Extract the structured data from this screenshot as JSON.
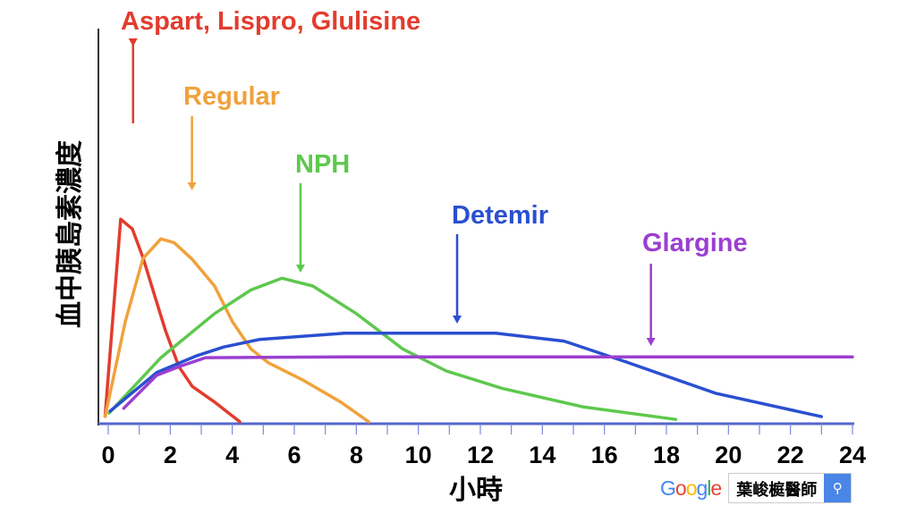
{
  "chart_data": {
    "type": "line",
    "title": "",
    "xlabel": "小時",
    "ylabel": "血中胰島素濃度",
    "xlim": [
      0,
      24
    ],
    "ylim": [
      0,
      100
    ],
    "x_ticks": [
      0,
      2,
      4,
      6,
      8,
      10,
      12,
      14,
      16,
      18,
      20,
      22,
      24
    ],
    "grid": false,
    "series": [
      {
        "name": "Aspart, Lispro, Glulisine",
        "color": "#e23c2e",
        "arrow_x": 0.8,
        "points": [
          [
            -0.1,
            2
          ],
          [
            0.4,
            52
          ],
          [
            0.78,
            49.5
          ],
          [
            1.13,
            42
          ],
          [
            1.48,
            33
          ],
          [
            1.85,
            23.6
          ],
          [
            2.28,
            14.5
          ],
          [
            2.71,
            9.5
          ],
          [
            3.43,
            5.5
          ],
          [
            4.24,
            0.5
          ]
        ]
      },
      {
        "name": "Regular",
        "color": "#f0a23c",
        "arrow_x": 2.7,
        "points": [
          [
            -0.1,
            1.8
          ],
          [
            0.55,
            26
          ],
          [
            1.12,
            42
          ],
          [
            1.7,
            47
          ],
          [
            2.13,
            46
          ],
          [
            2.71,
            41.8
          ],
          [
            3.43,
            35
          ],
          [
            4.0,
            26
          ],
          [
            4.6,
            19
          ],
          [
            5.16,
            15.5
          ],
          [
            6.3,
            11
          ],
          [
            7.5,
            5.5
          ],
          [
            8.4,
            0.5
          ]
        ]
      },
      {
        "name": "NPH",
        "color": "#5ec84e",
        "arrow_x": 6.2,
        "points": [
          [
            0.03,
            2.7
          ],
          [
            1.7,
            16.8
          ],
          [
            3.43,
            28
          ],
          [
            4.6,
            34
          ],
          [
            5.6,
            37
          ],
          [
            6.6,
            35
          ],
          [
            8.0,
            28
          ],
          [
            9.5,
            19
          ],
          [
            10.9,
            13.4
          ],
          [
            12.7,
            9
          ],
          [
            15.3,
            4.3
          ],
          [
            18.3,
            1.1
          ]
        ]
      },
      {
        "name": "Detemir",
        "color": "#2a4fd0",
        "arrow_x": 11.25,
        "points": [
          [
            0.06,
            3.2
          ],
          [
            1.56,
            13
          ],
          [
            2.86,
            17.3
          ],
          [
            3.72,
            19.5
          ],
          [
            4.87,
            21.4
          ],
          [
            7.6,
            23
          ],
          [
            12.5,
            23
          ],
          [
            14.7,
            21
          ],
          [
            16.7,
            15.7
          ],
          [
            19.6,
            7.7
          ],
          [
            23.0,
            1.8
          ]
        ]
      },
      {
        "name": "Glargine",
        "color": "#9b3fd0",
        "arrow_x": 17.5,
        "points": [
          [
            0.5,
            3.9
          ],
          [
            1.56,
            12.3
          ],
          [
            2.28,
            14.5
          ],
          [
            3.14,
            16.8
          ],
          [
            8.0,
            17
          ],
          [
            24,
            17
          ]
        ]
      }
    ]
  },
  "watermark": {
    "logo": "Google",
    "search_text": "葉峻榳醫師",
    "search_icon": "search-icon"
  }
}
